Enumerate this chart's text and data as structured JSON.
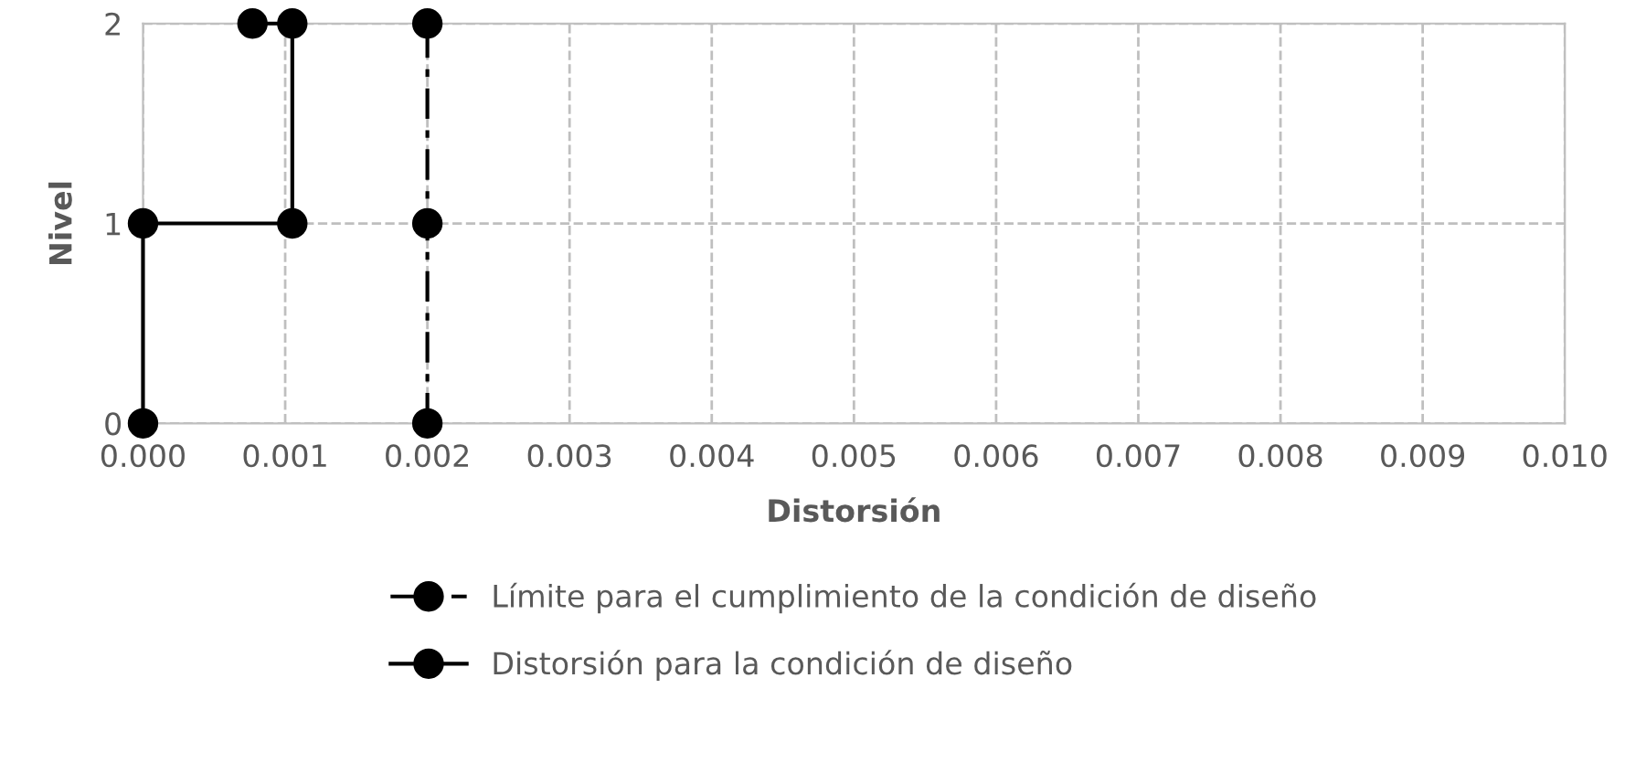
{
  "chart_data": {
    "type": "line",
    "xlabel": "Distorsión",
    "ylabel": "Nivel",
    "xlim": [
      0,
      0.01
    ],
    "ylim": [
      0,
      2
    ],
    "xticks": [
      {
        "value": 0,
        "label": "0.000"
      },
      {
        "value": 0.001,
        "label": "0.001"
      },
      {
        "value": 0.002,
        "label": "0.002"
      },
      {
        "value": 0.003,
        "label": "0.003"
      },
      {
        "value": 0.004,
        "label": "0.004"
      },
      {
        "value": 0.005,
        "label": "0.005"
      },
      {
        "value": 0.006,
        "label": "0.006"
      },
      {
        "value": 0.007,
        "label": "0.007"
      },
      {
        "value": 0.008,
        "label": "0.008"
      },
      {
        "value": 0.009,
        "label": "0.009"
      },
      {
        "value": 0.01,
        "label": "0.010"
      }
    ],
    "yticks": [
      0,
      1,
      2
    ],
    "grid": true,
    "legend": "bottom",
    "marker": "circle",
    "series": [
      {
        "name": "Límite para el cumplimiento de la condición de diseño",
        "color": "#000000",
        "line_style": "dashdot",
        "x": [
          0.002,
          0.002,
          0.002
        ],
        "values": [
          0,
          1,
          2
        ]
      },
      {
        "name": "Distorsión para la condición de diseño",
        "color": "#000000",
        "line_style": "solid",
        "x": [
          0,
          0,
          0.00105,
          0.00105,
          0.00077
        ],
        "values": [
          0,
          1,
          1,
          2,
          2
        ]
      }
    ]
  }
}
